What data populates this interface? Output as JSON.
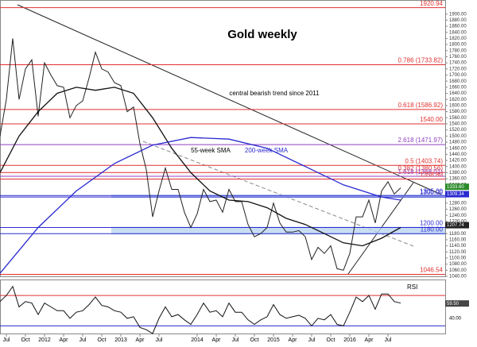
{
  "chart_data": {
    "type": "line",
    "title": "Gold weekly",
    "annotations": {
      "trend": "central bearish trend since 2011",
      "sma55": "55-week SMA",
      "sma200": "200-week SMA",
      "rsi": "RSI"
    },
    "xlim": [
      "2011-06",
      "2017-04"
    ],
    "xticks": [
      {
        "value": "2011-07",
        "label": "Jul"
      },
      {
        "value": "2011-10",
        "label": "Oct"
      },
      {
        "value": "2012-01",
        "label": "2012"
      },
      {
        "value": "2012-04",
        "label": "Apr"
      },
      {
        "value": "2012-07",
        "label": "Jul"
      },
      {
        "value": "2012-10",
        "label": "Oct"
      },
      {
        "value": "2013-01",
        "label": "2013"
      },
      {
        "value": "2013-04",
        "label": "Apr"
      },
      {
        "value": "2013-07",
        "label": "Jul"
      },
      {
        "value": "2014-01",
        "label": "2014"
      },
      {
        "value": "2014-04",
        "label": "Apr"
      },
      {
        "value": "2014-07",
        "label": "Jul"
      },
      {
        "value": "2014-10",
        "label": "Oct"
      },
      {
        "value": "2015-01",
        "label": "2015"
      },
      {
        "value": "2015-04",
        "label": "Apr"
      },
      {
        "value": "2015-07",
        "label": "Jul"
      },
      {
        "value": "2015-10",
        "label": "Oct"
      },
      {
        "value": "2016-01",
        "label": "2016"
      },
      {
        "value": "2016-04",
        "label": "Apr"
      },
      {
        "value": "2016-07",
        "label": "Jul"
      }
    ],
    "ylim": [
      1040,
      1920
    ],
    "yticks": [
      {
        "value": 1040,
        "label": "1040.00"
      },
      {
        "value": 1060,
        "label": "1060.00"
      },
      {
        "value": 1080,
        "label": "1080.00"
      },
      {
        "value": 1100,
        "label": "1100.00"
      },
      {
        "value": 1120,
        "label": "1120.00"
      },
      {
        "value": 1140,
        "label": "1140.00"
      },
      {
        "value": 1160,
        "label": "1160.00"
      },
      {
        "value": 1180,
        "label": "1180.00"
      },
      {
        "value": 1220,
        "label": "1220.00"
      },
      {
        "value": 1240,
        "label": "1240.00"
      },
      {
        "value": 1260,
        "label": "1260.00"
      },
      {
        "value": 1280,
        "label": "1280.00"
      },
      {
        "value": 1340,
        "label": "1340.00"
      },
      {
        "value": 1360,
        "label": "1360.00"
      },
      {
        "value": 1380,
        "label": "1380.00"
      },
      {
        "value": 1400,
        "label": "1400.00"
      },
      {
        "value": 1420,
        "label": "1420.00"
      },
      {
        "value": 1440,
        "label": "1440.00"
      },
      {
        "value": 1460,
        "label": "1460.00"
      },
      {
        "value": 1480,
        "label": "1480.00"
      },
      {
        "value": 1500,
        "label": "1500.00"
      },
      {
        "value": 1520,
        "label": "1520.00"
      },
      {
        "value": 1540,
        "label": "1540.00"
      },
      {
        "value": 1560,
        "label": "1560.00"
      },
      {
        "value": 1580,
        "label": "1580.00"
      },
      {
        "value": 1600,
        "label": "1600.00"
      },
      {
        "value": 1620,
        "label": "1620.00"
      },
      {
        "value": 1640,
        "label": "1640.00"
      },
      {
        "value": 1660,
        "label": "1660.00"
      },
      {
        "value": 1680,
        "label": "1680.00"
      },
      {
        "value": 1700,
        "label": "1700.00"
      },
      {
        "value": 1720,
        "label": "1720.00"
      },
      {
        "value": 1740,
        "label": "1740.00"
      },
      {
        "value": 1760,
        "label": "1760.00"
      },
      {
        "value": 1780,
        "label": "1780.00"
      },
      {
        "value": 1800,
        "label": "1800.00"
      },
      {
        "value": 1820,
        "label": "1820.00"
      },
      {
        "value": 1840,
        "label": "1840.00"
      },
      {
        "value": 1860,
        "label": "1860.00"
      },
      {
        "value": 1880,
        "label": "1880.00"
      },
      {
        "value": 1900,
        "label": "1900.00"
      }
    ],
    "series": [
      {
        "name": "Gold",
        "color": "#222222",
        "x": [
          "2011-06",
          "2011-07",
          "2011-08",
          "2011-09",
          "2011-10",
          "2011-11",
          "2011-12",
          "2012-01",
          "2012-02",
          "2012-03",
          "2012-04",
          "2012-05",
          "2012-06",
          "2012-07",
          "2012-08",
          "2012-09",
          "2012-10",
          "2012-11",
          "2012-12",
          "2013-01",
          "2013-02",
          "2013-03",
          "2013-04",
          "2013-05",
          "2013-06",
          "2013-07",
          "2013-08",
          "2013-09",
          "2013-10",
          "2013-11",
          "2013-12",
          "2014-01",
          "2014-02",
          "2014-03",
          "2014-04",
          "2014-05",
          "2014-06",
          "2014-07",
          "2014-08",
          "2014-09",
          "2014-10",
          "2014-11",
          "2014-12",
          "2015-01",
          "2015-02",
          "2015-03",
          "2015-04",
          "2015-05",
          "2015-06",
          "2015-07",
          "2015-08",
          "2015-09",
          "2015-10",
          "2015-11",
          "2015-12",
          "2016-01",
          "2016-02",
          "2016-03",
          "2016-04",
          "2016-05",
          "2016-06",
          "2016-07",
          "2016-08",
          "2016-09"
        ],
        "values": [
          1500,
          1620,
          1820,
          1620,
          1720,
          1750,
          1565,
          1740,
          1700,
          1665,
          1660,
          1560,
          1600,
          1615,
          1690,
          1775,
          1720,
          1710,
          1675,
          1665,
          1580,
          1595,
          1475,
          1390,
          1235,
          1320,
          1395,
          1325,
          1325,
          1250,
          1200,
          1245,
          1325,
          1285,
          1290,
          1250,
          1325,
          1285,
          1285,
          1210,
          1170,
          1180,
          1200,
          1280,
          1215,
          1185,
          1185,
          1190,
          1170,
          1095,
          1135,
          1115,
          1140,
          1065,
          1060,
          1115,
          1235,
          1235,
          1290,
          1215,
          1320,
          1350,
          1310,
          1330
        ]
      },
      {
        "name": "55-week SMA",
        "color": "#111111",
        "x": [
          "2011-06",
          "2011-09",
          "2011-12",
          "2012-03",
          "2012-06",
          "2012-09",
          "2012-12",
          "2013-03",
          "2013-06",
          "2013-09",
          "2013-12",
          "2014-03",
          "2014-06",
          "2014-09",
          "2014-12",
          "2015-03",
          "2015-06",
          "2015-09",
          "2015-12",
          "2016-03",
          "2016-06",
          "2016-09"
        ],
        "values": [
          1380,
          1500,
          1580,
          1640,
          1660,
          1650,
          1660,
          1640,
          1560,
          1460,
          1380,
          1320,
          1290,
          1285,
          1265,
          1230,
          1210,
          1180,
          1150,
          1140,
          1165,
          1200
        ]
      },
      {
        "name": "200-week SMA",
        "color": "#2a2ad0",
        "x": [
          "2011-06",
          "2011-12",
          "2012-06",
          "2012-12",
          "2013-06",
          "2013-12",
          "2014-06",
          "2014-12",
          "2015-06",
          "2015-12",
          "2016-06",
          "2016-09"
        ],
        "values": [
          1050,
          1200,
          1320,
          1410,
          1470,
          1495,
          1490,
          1460,
          1400,
          1340,
          1300,
          1290
        ]
      }
    ],
    "levels": [
      {
        "label": "1920.94",
        "value": 1920.94,
        "color": "#e03030"
      },
      {
        "label": "0.786 (1733.82)",
        "value": 1733.82,
        "color": "#e03030"
      },
      {
        "label": "0.618 (1586.92)",
        "value": 1586.92,
        "color": "#e03030"
      },
      {
        "label": "1540.00",
        "value": 1540.0,
        "color": "#e03030"
      },
      {
        "label": "2.618 (1471.97)",
        "value": 1471.97,
        "color": "#9040c0"
      },
      {
        "label": "0.5 (1403.74)",
        "value": 1403.74,
        "color": "#e03030"
      },
      {
        "label": "0.382 (1380.56)",
        "value": 1380.56,
        "color": "#e03030"
      },
      {
        "label": "1.618 (1368.01)",
        "value": 1368.01,
        "color": "#9040c0"
      },
      {
        "label": "1358.80",
        "value": 1358.8,
        "color": "#e03030"
      },
      {
        "label": "1305.00",
        "value": 1305.0,
        "color": "#2a2ad0"
      },
      {
        "label": "1300.00",
        "value": 1300.0,
        "color": "#2a2ad0"
      },
      {
        "label": "1200.00",
        "value": 1200.0,
        "color": "#2a2ad0"
      },
      {
        "label": "1180.00",
        "value": 1180.0,
        "color": "#2a2ad0"
      },
      {
        "label": "1046.54",
        "value": 1046.54,
        "color": "#e03030"
      }
    ],
    "zones": [
      [
        1180,
        1200
      ],
      [
        1300,
        1305
      ]
    ],
    "price_tags": [
      {
        "label": "1333.60",
        "value": 1333.6,
        "color": "#2a8a2a"
      },
      {
        "label": "1309.34",
        "value": 1309.34,
        "color": "#2a2ad0"
      },
      {
        "label": "1207.74",
        "value": 1207.74,
        "color": "#222222"
      }
    ],
    "rsi": {
      "name": "RSI",
      "color": "#111111",
      "ylim": [
        20,
        90
      ],
      "yticks": [
        {
          "value": 40,
          "label": "40.00"
        }
      ],
      "bands": [
        70,
        30
      ],
      "tag": {
        "label": "59.50",
        "value": 59.5
      },
      "values": [
        62,
        70,
        82,
        55,
        62,
        60,
        45,
        60,
        55,
        50,
        50,
        40,
        48,
        50,
        58,
        68,
        57,
        55,
        50,
        48,
        40,
        42,
        28,
        25,
        20,
        40,
        55,
        42,
        45,
        38,
        32,
        45,
        60,
        48,
        50,
        42,
        60,
        48,
        48,
        38,
        32,
        38,
        42,
        58,
        45,
        40,
        42,
        44,
        40,
        30,
        40,
        38,
        45,
        32,
        30,
        48,
        68,
        62,
        70,
        52,
        72,
        72,
        62,
        60
      ]
    }
  }
}
